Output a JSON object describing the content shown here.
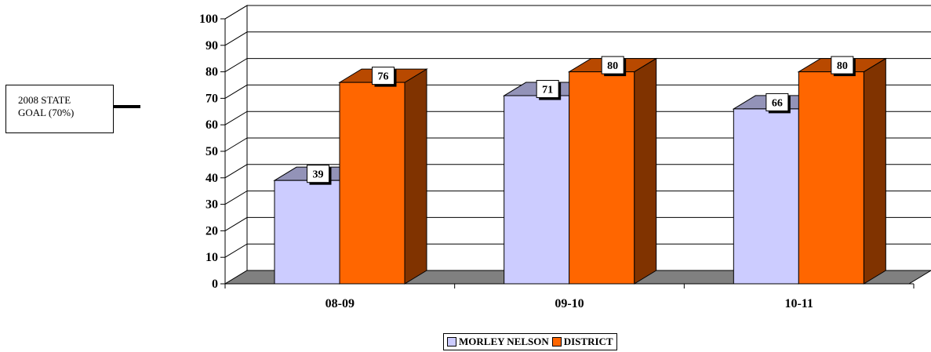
{
  "goal_annotation": {
    "line1": "2008 STATE",
    "line2": "GOAL (70%)"
  },
  "chart_data": {
    "type": "bar",
    "categories": [
      "08-09",
      "09-10",
      "10-11"
    ],
    "series": [
      {
        "name": "MORLEY NELSON",
        "values": [
          39,
          71,
          66
        ],
        "color": "#CCCCFF"
      },
      {
        "name": "DISTRICT",
        "values": [
          76,
          80,
          80
        ],
        "color": "#FF6600"
      }
    ],
    "y_ticks": [
      "0",
      "10",
      "20",
      "30",
      "40",
      "50",
      "60",
      "70",
      "80",
      "90",
      "100"
    ],
    "ylim": [
      0,
      100
    ],
    "title": "",
    "xlabel": "",
    "ylabel": "",
    "grid": true,
    "legend_position": "bottom",
    "style": "3d-clustered-columns"
  }
}
